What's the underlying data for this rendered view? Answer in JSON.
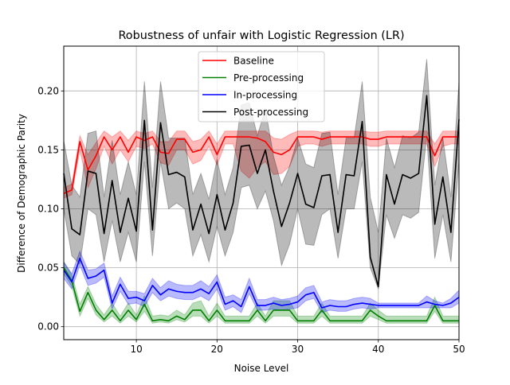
{
  "chart_data": {
    "type": "line",
    "title": "Robustness of unfair with Logistic Regression (LR)",
    "xlabel": "Noise Level",
    "ylabel": "Difference of Demographic Parity",
    "xlim": [
      1,
      50
    ],
    "ylim": [
      -0.011,
      0.238
    ],
    "xticks": [
      10,
      20,
      30,
      40,
      50
    ],
    "xtick_labels": [
      "10",
      "20",
      "30",
      "40",
      "50"
    ],
    "yticks": [
      0.0,
      0.05,
      0.1,
      0.15,
      0.2
    ],
    "ytick_labels": [
      "0.00",
      "0.05",
      "0.10",
      "0.15",
      "0.20"
    ],
    "grid": true,
    "legend_position": "top-center",
    "x": [
      1,
      2,
      3,
      4,
      5,
      6,
      7,
      8,
      9,
      10,
      11,
      12,
      13,
      14,
      15,
      16,
      17,
      18,
      19,
      20,
      21,
      22,
      23,
      24,
      25,
      26,
      27,
      28,
      29,
      30,
      31,
      32,
      33,
      34,
      35,
      36,
      37,
      38,
      39,
      40,
      41,
      42,
      43,
      44,
      45,
      46,
      47,
      48,
      49,
      50
    ],
    "series": [
      {
        "name": "Baseline",
        "color": "#ff0000",
        "values": [
          0.113,
          0.116,
          0.157,
          0.133,
          0.145,
          0.161,
          0.15,
          0.161,
          0.148,
          0.161,
          0.158,
          0.161,
          0.148,
          0.147,
          0.159,
          0.159,
          0.148,
          0.15,
          0.161,
          0.146,
          0.161,
          0.161,
          0.161,
          0.161,
          0.16,
          0.157,
          0.148,
          0.146,
          0.15,
          0.161,
          0.161,
          0.161,
          0.159,
          0.161,
          0.161,
          0.161,
          0.161,
          0.161,
          0.159,
          0.159,
          0.161,
          0.161,
          0.161,
          0.161,
          0.161,
          0.161,
          0.145,
          0.161,
          0.161,
          0.161
        ],
        "lower": [
          0.109,
          0.112,
          0.15,
          0.118,
          0.134,
          0.153,
          0.138,
          0.15,
          0.14,
          0.153,
          0.151,
          0.155,
          0.139,
          0.137,
          0.15,
          0.15,
          0.138,
          0.141,
          0.153,
          0.137,
          0.155,
          0.155,
          0.132,
          0.126,
          0.135,
          0.14,
          0.129,
          0.13,
          0.136,
          0.153,
          0.155,
          0.155,
          0.153,
          0.155,
          0.155,
          0.155,
          0.155,
          0.155,
          0.153,
          0.153,
          0.155,
          0.155,
          0.155,
          0.155,
          0.155,
          0.155,
          0.136,
          0.153,
          0.155,
          0.155
        ],
        "upper": [
          0.118,
          0.121,
          0.162,
          0.146,
          0.156,
          0.166,
          0.161,
          0.166,
          0.158,
          0.166,
          0.164,
          0.166,
          0.157,
          0.157,
          0.166,
          0.166,
          0.157,
          0.159,
          0.166,
          0.155,
          0.166,
          0.166,
          0.166,
          0.166,
          0.166,
          0.166,
          0.16,
          0.159,
          0.163,
          0.166,
          0.166,
          0.166,
          0.165,
          0.166,
          0.166,
          0.166,
          0.166,
          0.166,
          0.165,
          0.165,
          0.166,
          0.166,
          0.166,
          0.166,
          0.166,
          0.166,
          0.155,
          0.166,
          0.166,
          0.166
        ]
      },
      {
        "name": "Pre-processing",
        "color": "#008000",
        "values": [
          0.05,
          0.039,
          0.013,
          0.029,
          0.014,
          0.006,
          0.014,
          0.005,
          0.014,
          0.006,
          0.019,
          0.005,
          0.006,
          0.005,
          0.009,
          0.006,
          0.014,
          0.014,
          0.005,
          0.014,
          0.005,
          0.005,
          0.005,
          0.005,
          0.014,
          0.005,
          0.014,
          0.014,
          0.014,
          0.005,
          0.005,
          0.005,
          0.014,
          0.005,
          0.005,
          0.005,
          0.005,
          0.005,
          0.014,
          0.009,
          0.005,
          0.005,
          0.005,
          0.005,
          0.005,
          0.005,
          0.018,
          0.005,
          0.005,
          0.005
        ],
        "lower": [
          0.045,
          0.034,
          0.009,
          0.024,
          0.01,
          0.004,
          0.009,
          0.003,
          0.009,
          0.004,
          0.013,
          0.003,
          0.004,
          0.003,
          0.006,
          0.004,
          0.009,
          0.009,
          0.003,
          0.009,
          0.003,
          0.003,
          0.003,
          0.003,
          0.009,
          0.003,
          0.009,
          0.009,
          0.009,
          0.003,
          0.003,
          0.003,
          0.009,
          0.003,
          0.003,
          0.003,
          0.003,
          0.003,
          0.009,
          0.006,
          0.003,
          0.003,
          0.003,
          0.003,
          0.003,
          0.003,
          0.013,
          0.003,
          0.003,
          0.003
        ],
        "upper": [
          0.055,
          0.044,
          0.019,
          0.034,
          0.019,
          0.01,
          0.02,
          0.009,
          0.02,
          0.01,
          0.026,
          0.009,
          0.01,
          0.009,
          0.014,
          0.01,
          0.02,
          0.022,
          0.009,
          0.02,
          0.009,
          0.009,
          0.009,
          0.009,
          0.02,
          0.009,
          0.022,
          0.022,
          0.022,
          0.009,
          0.009,
          0.009,
          0.02,
          0.009,
          0.009,
          0.009,
          0.009,
          0.009,
          0.02,
          0.014,
          0.009,
          0.009,
          0.009,
          0.009,
          0.009,
          0.009,
          0.025,
          0.009,
          0.009,
          0.009
        ]
      },
      {
        "name": "In-processing",
        "color": "#0000ff",
        "values": [
          0.048,
          0.038,
          0.058,
          0.041,
          0.043,
          0.048,
          0.02,
          0.036,
          0.024,
          0.025,
          0.022,
          0.035,
          0.027,
          0.032,
          0.03,
          0.029,
          0.029,
          0.032,
          0.028,
          0.038,
          0.019,
          0.022,
          0.017,
          0.034,
          0.018,
          0.018,
          0.02,
          0.018,
          0.019,
          0.021,
          0.027,
          0.029,
          0.016,
          0.018,
          0.017,
          0.017,
          0.019,
          0.02,
          0.019,
          0.018,
          0.018,
          0.018,
          0.018,
          0.018,
          0.018,
          0.021,
          0.019,
          0.018,
          0.02,
          0.025
        ],
        "lower": [
          0.041,
          0.032,
          0.052,
          0.035,
          0.037,
          0.042,
          0.015,
          0.03,
          0.019,
          0.02,
          0.017,
          0.029,
          0.022,
          0.026,
          0.024,
          0.023,
          0.023,
          0.026,
          0.022,
          0.032,
          0.014,
          0.017,
          0.012,
          0.028,
          0.014,
          0.014,
          0.015,
          0.014,
          0.015,
          0.016,
          0.022,
          0.024,
          0.012,
          0.014,
          0.013,
          0.013,
          0.015,
          0.016,
          0.015,
          0.016,
          0.016,
          0.016,
          0.016,
          0.016,
          0.016,
          0.016,
          0.016,
          0.016,
          0.016,
          0.02
        ],
        "upper": [
          0.055,
          0.045,
          0.064,
          0.048,
          0.049,
          0.054,
          0.026,
          0.042,
          0.03,
          0.03,
          0.028,
          0.041,
          0.033,
          0.039,
          0.036,
          0.035,
          0.035,
          0.039,
          0.034,
          0.044,
          0.025,
          0.027,
          0.023,
          0.041,
          0.023,
          0.023,
          0.025,
          0.023,
          0.024,
          0.026,
          0.033,
          0.035,
          0.021,
          0.023,
          0.022,
          0.022,
          0.024,
          0.025,
          0.024,
          0.02,
          0.02,
          0.02,
          0.02,
          0.02,
          0.02,
          0.026,
          0.022,
          0.02,
          0.024,
          0.031
        ]
      },
      {
        "name": "Post-processing",
        "color": "#000000",
        "values": [
          0.13,
          0.083,
          0.078,
          0.132,
          0.13,
          0.079,
          0.124,
          0.08,
          0.109,
          0.081,
          0.175,
          0.082,
          0.173,
          0.129,
          0.131,
          0.127,
          0.082,
          0.104,
          0.079,
          0.112,
          0.082,
          0.105,
          0.153,
          0.154,
          0.13,
          0.15,
          0.115,
          0.085,
          0.105,
          0.13,
          0.104,
          0.101,
          0.128,
          0.129,
          0.08,
          0.129,
          0.128,
          0.174,
          0.059,
          0.034,
          0.129,
          0.104,
          0.129,
          0.126,
          0.13,
          0.196,
          0.087,
          0.127,
          0.08,
          0.176
        ],
        "lower": [
          0.1,
          0.06,
          0.053,
          0.1,
          0.095,
          0.055,
          0.09,
          0.055,
          0.08,
          0.055,
          0.14,
          0.06,
          0.14,
          0.1,
          0.105,
          0.1,
          0.06,
          0.078,
          0.055,
          0.085,
          0.06,
          0.08,
          0.118,
          0.12,
          0.1,
          0.115,
          0.09,
          0.052,
          0.07,
          0.1,
          0.07,
          0.069,
          0.095,
          0.1,
          0.058,
          0.1,
          0.1,
          0.14,
          0.05,
          0.032,
          0.095,
          0.075,
          0.095,
          0.092,
          0.097,
          0.162,
          0.058,
          0.095,
          0.055,
          0.14
        ],
        "upper": [
          0.158,
          0.12,
          0.11,
          0.164,
          0.166,
          0.11,
          0.158,
          0.112,
          0.14,
          0.112,
          0.208,
          0.118,
          0.208,
          0.16,
          0.16,
          0.16,
          0.112,
          0.13,
          0.108,
          0.142,
          0.112,
          0.135,
          0.188,
          0.19,
          0.162,
          0.185,
          0.145,
          0.12,
          0.136,
          0.16,
          0.138,
          0.135,
          0.164,
          0.165,
          0.112,
          0.16,
          0.16,
          0.208,
          0.11,
          0.08,
          0.16,
          0.135,
          0.162,
          0.16,
          0.165,
          0.227,
          0.12,
          0.16,
          0.11,
          0.208
        ]
      }
    ]
  }
}
